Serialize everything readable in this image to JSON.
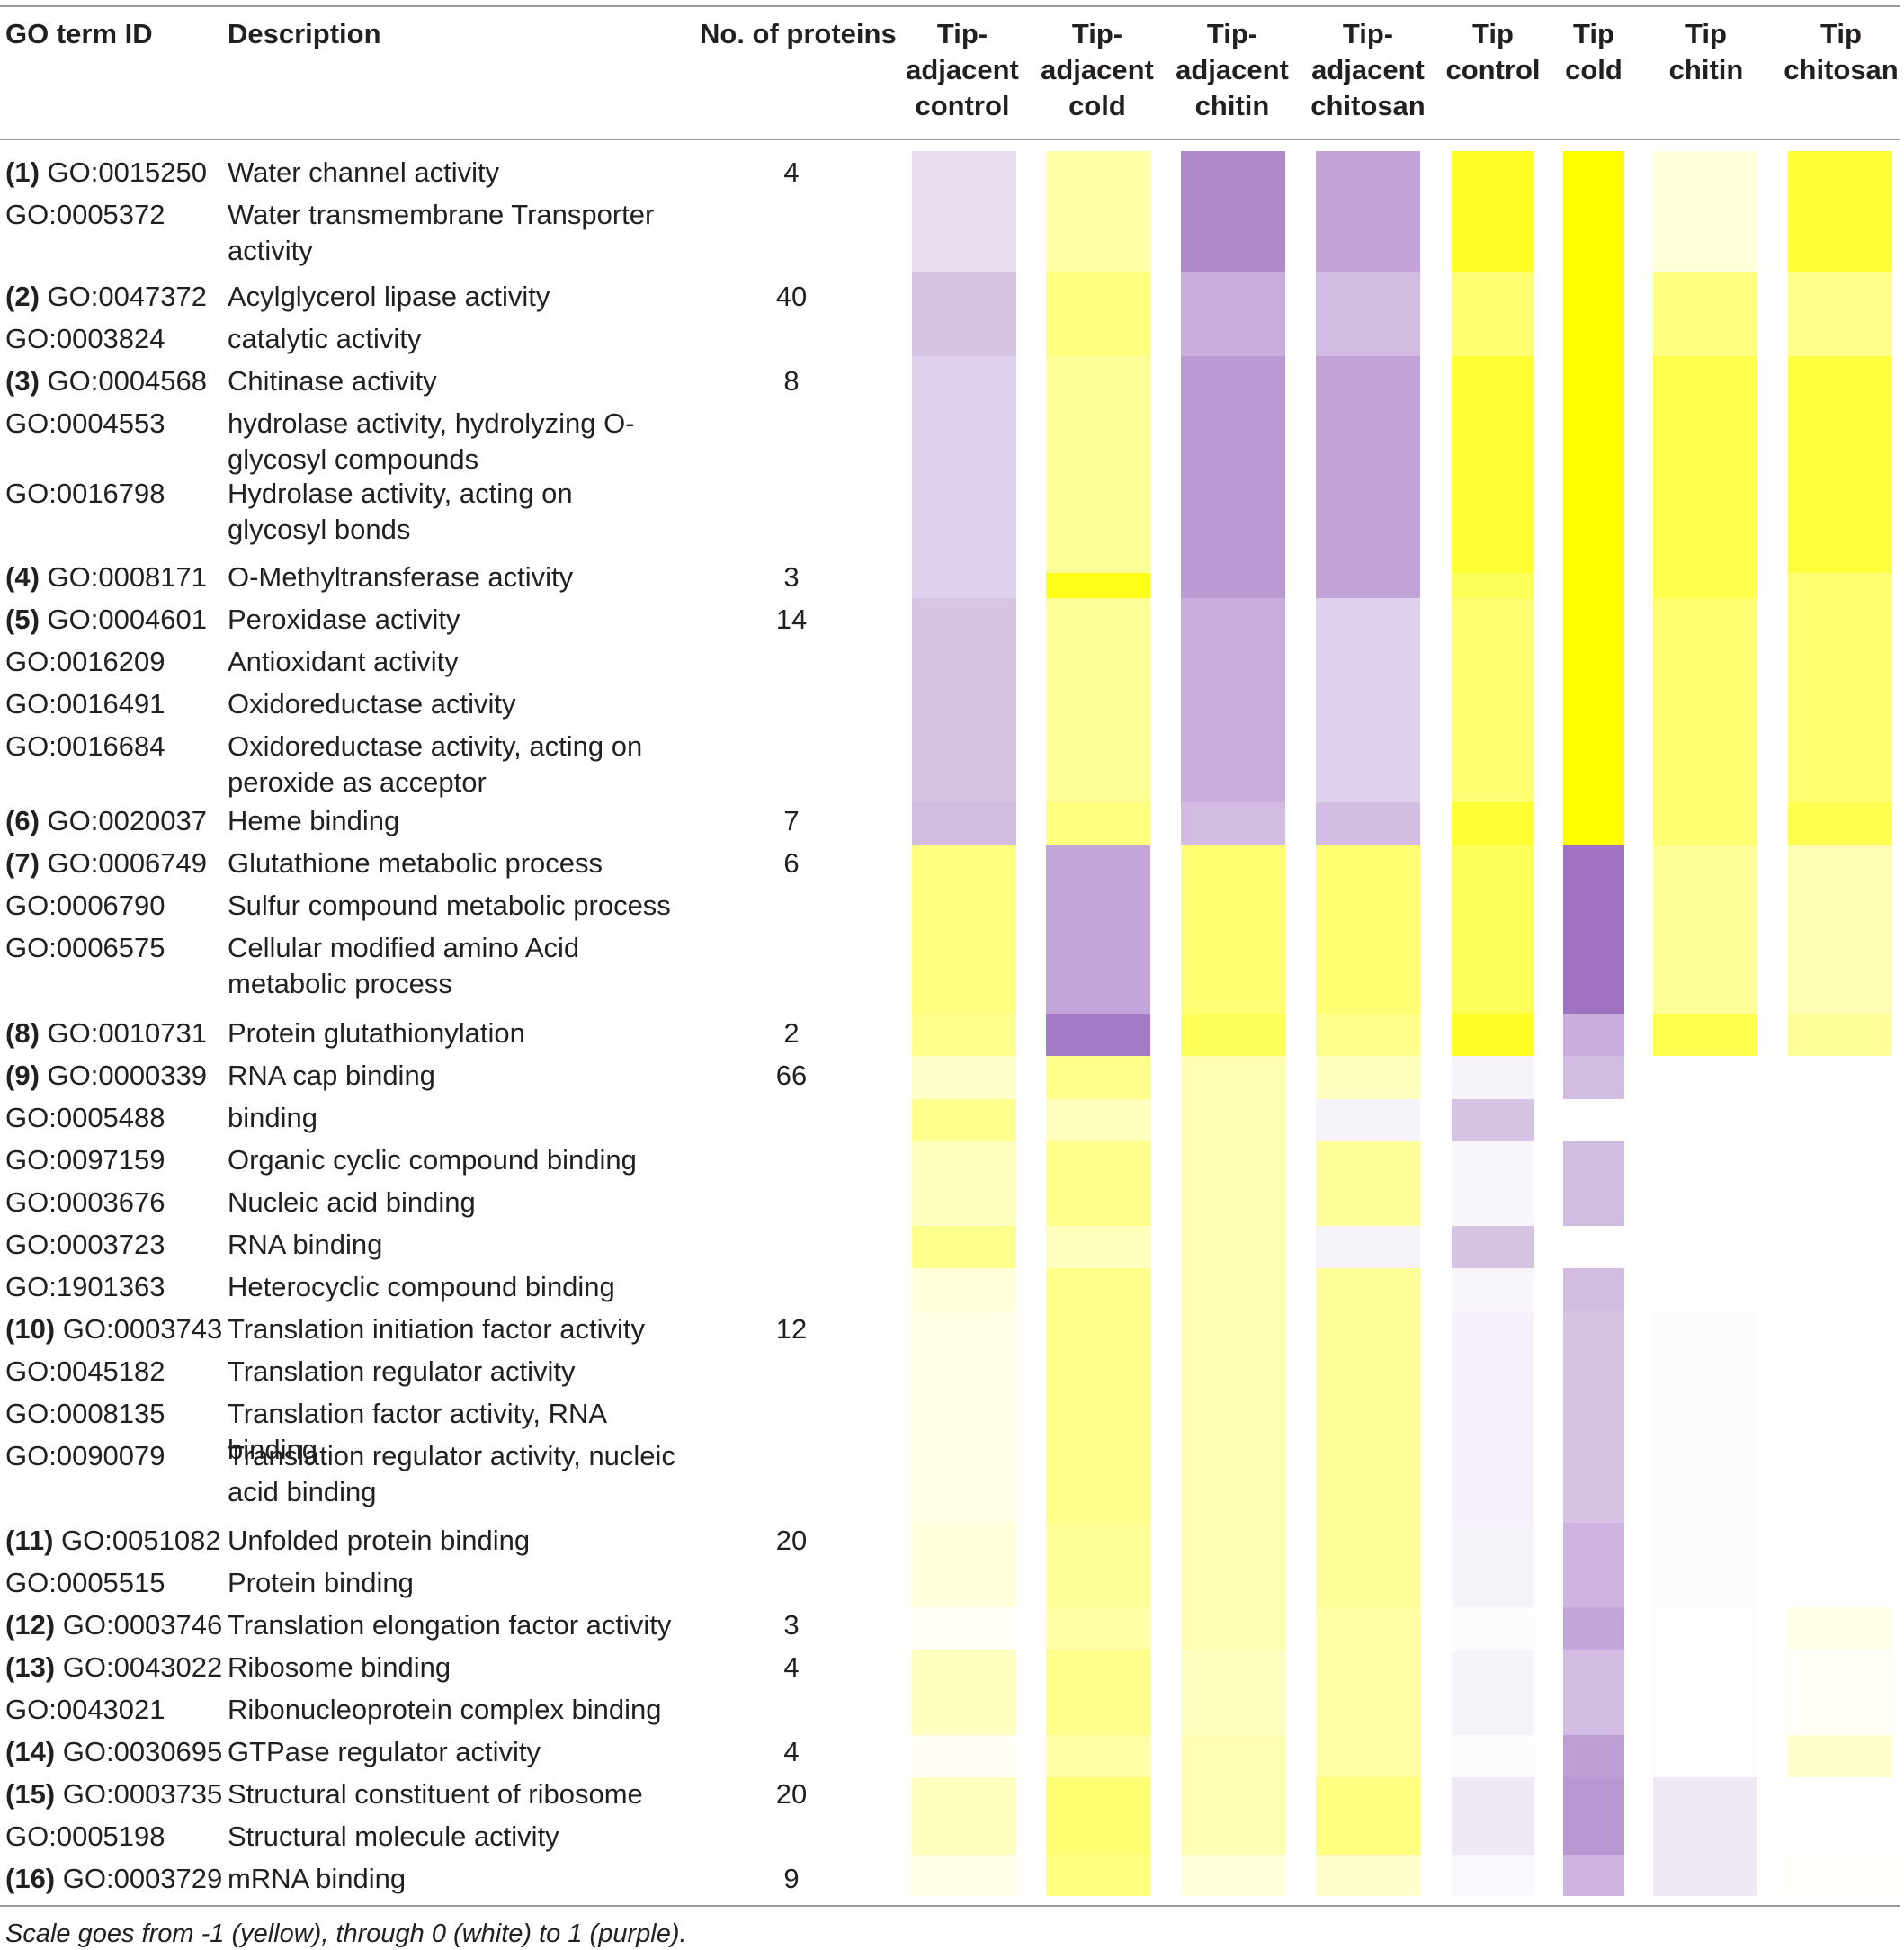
{
  "table": {
    "headers": {
      "go_term_id": "GO term ID",
      "description": "Description",
      "no_of_proteins": "No. of proteins",
      "conditions": [
        [
          "Tip-",
          "adjacent",
          "control"
        ],
        [
          "Tip-",
          "adjacent",
          "cold"
        ],
        [
          "Tip-",
          "adjacent",
          "chitin"
        ],
        [
          "Tip-",
          "adjacent",
          "chitosan"
        ],
        [
          "Tip",
          "control"
        ],
        [
          "Tip",
          "cold"
        ],
        [
          "Tip",
          "chitin"
        ],
        [
          "Tip",
          "chitosan"
        ]
      ]
    },
    "rows": [
      {
        "group": "(1)",
        "go": "GO:0015250",
        "desc": "Water channel activity",
        "n": "4"
      },
      {
        "group": "",
        "go": "GO:0005372",
        "desc": "Water transmembrane Transporter activity",
        "n": ""
      },
      {
        "group": "(2)",
        "go": "GO:0047372",
        "desc": "Acylglycerol lipase activity",
        "n": "40"
      },
      {
        "group": "",
        "go": "GO:0003824",
        "desc": "catalytic activity",
        "n": ""
      },
      {
        "group": "(3)",
        "go": "GO:0004568",
        "desc": "Chitinase activity",
        "n": "8"
      },
      {
        "group": "",
        "go": "GO:0004553",
        "desc": "hydrolase activity, hydrolyzing O-glycosyl compounds",
        "n": ""
      },
      {
        "group": "",
        "go": "GO:0016798",
        "desc": "Hydrolase activity, acting on glycosyl bonds",
        "n": ""
      },
      {
        "group": "(4)",
        "go": "GO:0008171",
        "desc": "O-Methyltransferase activity",
        "n": "3"
      },
      {
        "group": "(5)",
        "go": "GO:0004601",
        "desc": "Peroxidase activity",
        "n": "14"
      },
      {
        "group": "",
        "go": "GO:0016209",
        "desc": "Antioxidant activity",
        "n": ""
      },
      {
        "group": "",
        "go": "GO:0016491",
        "desc": "Oxidoreductase activity",
        "n": ""
      },
      {
        "group": "",
        "go": "GO:0016684",
        "desc": "Oxidoreductase activity, acting on peroxide as acceptor",
        "n": ""
      },
      {
        "group": "(6)",
        "go": "GO:0020037",
        "desc": "Heme binding",
        "n": "7"
      },
      {
        "group": "(7)",
        "go": "GO:0006749",
        "desc": "Glutathione metabolic process",
        "n": "6"
      },
      {
        "group": "",
        "go": "GO:0006790",
        "desc": "Sulfur compound metabolic process",
        "n": ""
      },
      {
        "group": "",
        "go": "GO:0006575",
        "desc": "Cellular modified amino Acid metabolic process",
        "n": ""
      },
      {
        "group": "(8)",
        "go": "GO:0010731",
        "desc": "Protein glutathionylation",
        "n": "2"
      },
      {
        "group": "(9)",
        "go": "GO:0000339",
        "desc": "RNA cap binding",
        "n": "66"
      },
      {
        "group": "",
        "go": "GO:0005488",
        "desc": "binding",
        "n": ""
      },
      {
        "group": "",
        "go": "GO:0097159",
        "desc": "Organic cyclic compound binding",
        "n": ""
      },
      {
        "group": "",
        "go": "GO:0003676",
        "desc": "Nucleic acid binding",
        "n": ""
      },
      {
        "group": "",
        "go": "GO:0003723",
        "desc": "RNA binding",
        "n": ""
      },
      {
        "group": "",
        "go": "GO:1901363",
        "desc": "Heterocyclic compound binding",
        "n": ""
      },
      {
        "group": "(10)",
        "go": "GO:0003743",
        "desc": "Translation initiation factor activity",
        "n": "12"
      },
      {
        "group": "",
        "go": "GO:0045182",
        "desc": "Translation regulator activity",
        "n": ""
      },
      {
        "group": "",
        "go": "GO:0008135",
        "desc": "Translation factor activity, RNA binding",
        "n": ""
      },
      {
        "group": "",
        "go": "GO:0090079",
        "desc": "Translation regulator activity, nucleic acid binding",
        "n": ""
      },
      {
        "group": "(11)",
        "go": "GO:0051082",
        "desc": "Unfolded protein binding",
        "n": "20"
      },
      {
        "group": "",
        "go": "GO:0005515",
        "desc": "Protein binding",
        "n": ""
      },
      {
        "group": "(12)",
        "go": "GO:0003746",
        "desc": "Translation elongation factor activity",
        "n": "3"
      },
      {
        "group": "(13)",
        "go": "GO:0043022",
        "desc": "Ribosome binding",
        "n": "4"
      },
      {
        "group": "",
        "go": "GO:0043021",
        "desc": "Ribonucleoprotein complex binding",
        "n": ""
      },
      {
        "group": "(14)",
        "go": "GO:0030695",
        "desc": "GTPase regulator activity",
        "n": "4"
      },
      {
        "group": "(15)",
        "go": "GO:0003735",
        "desc": "Structural constituent of ribosome",
        "n": "20"
      },
      {
        "group": "",
        "go": "GO:0005198",
        "desc": "Structural molecule activity",
        "n": ""
      },
      {
        "group": "(16)",
        "go": "GO:0003729",
        "desc": "mRNA binding",
        "n": "9"
      }
    ],
    "heatmap": {
      "scale_colors": {
        "negative": "#ffff00",
        "zero": "#ffffff",
        "positive": "#9b6bbf"
      },
      "values": [
        [
          0.22,
          -0.35,
          0.8,
          0.62,
          -0.85,
          -1.0,
          -0.15,
          -0.8
        ],
        [
          0.22,
          -0.35,
          0.8,
          0.62,
          -0.85,
          -1.0,
          -0.15,
          -0.8
        ],
        [
          0.4,
          -0.5,
          0.55,
          0.45,
          -0.55,
          -1.0,
          -0.5,
          -0.45
        ],
        [
          0.4,
          -0.5,
          0.55,
          0.45,
          -0.55,
          -1.0,
          -0.5,
          -0.45
        ],
        [
          0.32,
          -0.4,
          0.68,
          0.62,
          -0.8,
          -1.0,
          -0.7,
          -0.75
        ],
        [
          0.32,
          -0.4,
          0.68,
          0.62,
          -0.8,
          -1.0,
          -0.7,
          -0.75
        ],
        [
          0.32,
          -0.4,
          0.68,
          0.62,
          -0.8,
          -1.0,
          -0.7,
          -0.75
        ],
        [
          0.32,
          -0.9,
          0.68,
          0.62,
          -0.65,
          -1.0,
          -0.7,
          -0.55
        ],
        [
          0.4,
          -0.4,
          0.55,
          0.32,
          -0.55,
          -1.0,
          -0.55,
          -0.55
        ],
        [
          0.4,
          -0.4,
          0.55,
          0.32,
          -0.55,
          -1.0,
          -0.55,
          -0.55
        ],
        [
          0.4,
          -0.4,
          0.55,
          0.32,
          -0.55,
          -1.0,
          -0.55,
          -0.55
        ],
        [
          0.4,
          -0.4,
          0.55,
          0.32,
          -0.55,
          -1.0,
          -0.55,
          -0.55
        ],
        [
          0.45,
          -0.5,
          0.45,
          0.45,
          -0.8,
          -1.0,
          -0.55,
          -0.7
        ],
        [
          -0.5,
          0.6,
          -0.55,
          -0.55,
          -0.65,
          0.95,
          -0.4,
          -0.3
        ],
        [
          -0.5,
          0.6,
          -0.55,
          -0.55,
          -0.65,
          0.95,
          -0.4,
          -0.3
        ],
        [
          -0.5,
          0.6,
          -0.55,
          -0.55,
          -0.65,
          0.95,
          -0.4,
          -0.3
        ],
        [
          -0.45,
          0.9,
          -0.65,
          -0.45,
          -0.85,
          0.55,
          -0.7,
          -0.4
        ],
        [
          -0.2,
          -0.45,
          -0.3,
          -0.25,
          0.08,
          0.45,
          0.01,
          0.0
        ],
        [
          -0.45,
          -0.25,
          -0.3,
          0.08,
          0.4,
          0.0,
          0.0,
          0.0
        ],
        [
          -0.25,
          -0.45,
          -0.3,
          -0.4,
          0.07,
          0.45,
          0.01,
          0.0
        ],
        [
          -0.25,
          -0.45,
          -0.3,
          -0.4,
          0.07,
          0.45,
          0.01,
          0.0
        ],
        [
          -0.45,
          -0.25,
          -0.3,
          0.08,
          0.4,
          0.0,
          0.0,
          0.0
        ],
        [
          -0.15,
          -0.45,
          -0.3,
          -0.4,
          0.07,
          0.45,
          0.01,
          0.0
        ],
        [
          -0.1,
          -0.45,
          -0.3,
          -0.4,
          0.1,
          0.4,
          0.03,
          0.0
        ],
        [
          -0.1,
          -0.45,
          -0.3,
          -0.4,
          0.1,
          0.4,
          0.03,
          0.0
        ],
        [
          -0.1,
          -0.45,
          -0.3,
          -0.4,
          0.1,
          0.4,
          0.03,
          0.0
        ],
        [
          -0.1,
          -0.45,
          -0.3,
          -0.4,
          0.1,
          0.4,
          0.03,
          0.0
        ],
        [
          -0.15,
          -0.4,
          -0.3,
          -0.4,
          0.08,
          0.5,
          0.03,
          0.0
        ],
        [
          -0.15,
          -0.4,
          -0.3,
          -0.4,
          0.08,
          0.5,
          0.03,
          0.0
        ],
        [
          -0.03,
          -0.35,
          -0.3,
          -0.35,
          0.03,
          0.6,
          0.02,
          -0.1
        ],
        [
          -0.25,
          -0.45,
          -0.25,
          -0.35,
          0.08,
          0.45,
          0.02,
          -0.03
        ],
        [
          -0.25,
          -0.45,
          -0.25,
          -0.35,
          0.08,
          0.45,
          0.02,
          -0.03
        ],
        [
          -0.05,
          -0.35,
          -0.3,
          -0.35,
          0.03,
          0.65,
          0.02,
          -0.2
        ],
        [
          -0.25,
          -0.55,
          -0.3,
          -0.5,
          0.15,
          0.7,
          0.15,
          0.0
        ],
        [
          -0.25,
          -0.55,
          -0.3,
          -0.5,
          0.15,
          0.7,
          0.15,
          0.0
        ],
        [
          -0.1,
          -0.5,
          -0.15,
          -0.2,
          0.05,
          0.5,
          0.15,
          -0.02
        ]
      ]
    }
  },
  "footnote": "Scale goes from -1 (yellow), through 0 (white) to 1 (purple)."
}
